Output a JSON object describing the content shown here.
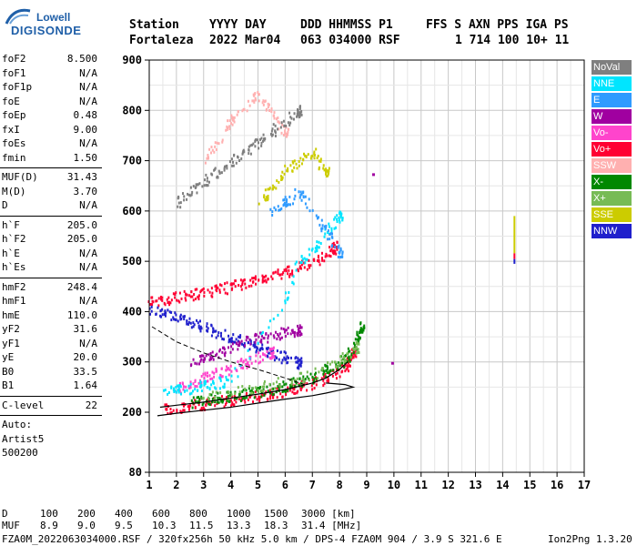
{
  "logo": {
    "top": "Lowell",
    "bottom": "DIGISONDE"
  },
  "header": {
    "labels": [
      "Station",
      "YYYY DAY",
      "DDD HHMMSS P1",
      "FFS S AXN PPS IGA PS"
    ],
    "values": [
      "Fortaleza",
      "2022 Mar04",
      "063 034000 RSF",
      "1 714 100 10+ 11"
    ]
  },
  "params": {
    "group1": [
      {
        "name": "foF2",
        "value": "8.500"
      },
      {
        "name": "foF1",
        "value": "N/A"
      },
      {
        "name": "foF1p",
        "value": "N/A"
      },
      {
        "name": "foE",
        "value": "N/A"
      },
      {
        "name": "foEp",
        "value": "0.48"
      },
      {
        "name": "fxI",
        "value": "9.00"
      },
      {
        "name": "foEs",
        "value": "N/A"
      },
      {
        "name": "fmin",
        "value": "1.50"
      }
    ],
    "group2": [
      {
        "name": "MUF(D)",
        "value": "31.43"
      },
      {
        "name": "M(D)",
        "value": "3.70"
      },
      {
        "name": "D",
        "value": "N/A"
      }
    ],
    "group3": [
      {
        "name": "h`F",
        "value": "205.0"
      },
      {
        "name": "h`F2",
        "value": "205.0"
      },
      {
        "name": "h`E",
        "value": "N/A"
      },
      {
        "name": "h`Es",
        "value": "N/A"
      }
    ],
    "group4": [
      {
        "name": "hmF2",
        "value": "248.4"
      },
      {
        "name": "hmF1",
        "value": "N/A"
      },
      {
        "name": "hmE",
        "value": "110.0"
      },
      {
        "name": "yF2",
        "value": "31.6"
      },
      {
        "name": "yF1",
        "value": "N/A"
      },
      {
        "name": "yE",
        "value": "20.0"
      },
      {
        "name": "B0",
        "value": "33.5"
      },
      {
        "name": "B1",
        "value": "1.64"
      }
    ],
    "clevel": {
      "name": "C-level",
      "value": "22"
    },
    "auto": [
      "Auto:",
      "Artist5",
      "500200"
    ]
  },
  "legend": [
    {
      "label": "NoVal",
      "color": "#7f7f7f"
    },
    {
      "label": "NNE",
      "color": "#00e5ff"
    },
    {
      "label": "E",
      "color": "#2f9bff"
    },
    {
      "label": "W",
      "color": "#a000a0"
    },
    {
      "label": "Vo-",
      "color": "#ff44cc"
    },
    {
      "label": "Vo+",
      "color": "#ff0033"
    },
    {
      "label": "SSW",
      "color": "#ffb0b0"
    },
    {
      "label": "X-",
      "color": "#008800"
    },
    {
      "label": "X+",
      "color": "#77bb55"
    },
    {
      "label": "SSE",
      "color": "#cccc00"
    },
    {
      "label": "NNW",
      "color": "#2020cc"
    }
  ],
  "footer": {
    "d_label": "D",
    "d_values": [
      "100",
      "200",
      "400",
      "600",
      "800",
      "1000",
      "1500",
      "3000 [km]"
    ],
    "muf_label": "MUF",
    "muf_values": [
      "8.9",
      "9.0",
      "9.5",
      "10.3",
      "11.5",
      "13.3",
      "18.3",
      "31.4 [MHz]"
    ],
    "file_line": "FZA0M_2022063034000.RSF / 320fx256h 50 kHz 5.0 km / DPS-4 FZA0M 904 / 3.9 S 321.6 E",
    "version": "Ion2Png 1.3.20"
  },
  "chart_data": {
    "type": "scatter",
    "xlim": [
      1,
      17
    ],
    "ylim": [
      80,
      900
    ],
    "xticks": [
      1,
      2,
      3,
      4,
      5,
      6,
      7,
      8,
      9,
      10,
      11,
      12,
      13,
      14,
      15,
      16,
      17
    ],
    "yticks": [
      80,
      200,
      300,
      400,
      500,
      600,
      700,
      800,
      900
    ],
    "grid": true,
    "traces": [
      {
        "name": "Vo+",
        "color": "#ff0033",
        "points": [
          [
            1.5,
            207
          ],
          [
            2.0,
            210
          ],
          [
            2.5,
            214
          ],
          [
            3.0,
            218
          ],
          [
            3.5,
            222
          ],
          [
            4.0,
            226
          ],
          [
            4.5,
            230
          ],
          [
            5.0,
            234
          ],
          [
            5.5,
            240
          ],
          [
            6.0,
            246
          ],
          [
            6.5,
            252
          ],
          [
            7.0,
            260
          ],
          [
            7.5,
            270
          ],
          [
            8.0,
            285
          ],
          [
            8.3,
            300
          ],
          [
            8.5,
            320
          ]
        ]
      },
      {
        "name": "X-",
        "color": "#008800",
        "points": [
          [
            2.5,
            222
          ],
          [
            3.0,
            226
          ],
          [
            3.5,
            230
          ],
          [
            4.0,
            234
          ],
          [
            4.5,
            238
          ],
          [
            5.0,
            243
          ],
          [
            5.5,
            248
          ],
          [
            6.0,
            254
          ],
          [
            6.5,
            262
          ],
          [
            7.0,
            272
          ],
          [
            7.5,
            285
          ],
          [
            8.0,
            300
          ],
          [
            8.3,
            315
          ],
          [
            8.6,
            340
          ],
          [
            8.8,
            370
          ]
        ]
      },
      {
        "name": "Vo+ upper",
        "color": "#ff0033",
        "points": [
          [
            1.0,
            420
          ],
          [
            1.5,
            425
          ],
          [
            2.0,
            430
          ],
          [
            2.5,
            435
          ],
          [
            3.0,
            440
          ],
          [
            3.5,
            446
          ],
          [
            4.0,
            452
          ],
          [
            4.5,
            458
          ],
          [
            5.0,
            465
          ],
          [
            5.5,
            472
          ],
          [
            6.0,
            480
          ],
          [
            6.5,
            490
          ],
          [
            7.0,
            500
          ],
          [
            7.5,
            515
          ],
          [
            7.8,
            530
          ]
        ]
      },
      {
        "name": "NNW",
        "color": "#2020cc",
        "points": [
          [
            1.0,
            410
          ],
          [
            1.5,
            400
          ],
          [
            2.0,
            390
          ],
          [
            2.5,
            380
          ],
          [
            3.0,
            370
          ],
          [
            3.5,
            360
          ],
          [
            4.0,
            350
          ],
          [
            4.5,
            340
          ],
          [
            5.0,
            330
          ],
          [
            5.5,
            320
          ],
          [
            6.0,
            310
          ],
          [
            6.5,
            300
          ]
        ]
      },
      {
        "name": "W",
        "color": "#a000a0",
        "points": [
          [
            2.5,
            300
          ],
          [
            3.0,
            310
          ],
          [
            3.5,
            320
          ],
          [
            4.0,
            330
          ],
          [
            4.5,
            340
          ],
          [
            5.0,
            350
          ],
          [
            5.5,
            355
          ],
          [
            6.0,
            360
          ],
          [
            6.5,
            365
          ]
        ]
      },
      {
        "name": "Vo-",
        "color": "#ff44cc",
        "points": [
          [
            2.0,
            250
          ],
          [
            2.5,
            260
          ],
          [
            3.0,
            270
          ],
          [
            3.5,
            280
          ],
          [
            4.0,
            290
          ],
          [
            4.5,
            300
          ],
          [
            5.0,
            310
          ],
          [
            5.5,
            320
          ]
        ]
      },
      {
        "name": "NNE",
        "color": "#00e5ff",
        "points": [
          [
            1.5,
            240
          ],
          [
            2.0,
            245
          ],
          [
            2.5,
            250
          ],
          [
            3.0,
            255
          ],
          [
            3.5,
            260
          ],
          [
            4.0,
            265
          ],
          [
            6.0,
            420
          ],
          [
            6.5,
            500
          ],
          [
            7.0,
            520
          ],
          [
            7.5,
            560
          ],
          [
            8.0,
            590
          ]
        ]
      },
      {
        "name": "E",
        "color": "#2f9bff",
        "points": [
          [
            5.5,
            600
          ],
          [
            6.0,
            620
          ],
          [
            6.5,
            640
          ],
          [
            7.0,
            600
          ],
          [
            7.5,
            560
          ],
          [
            8.0,
            520
          ]
        ]
      },
      {
        "name": "SSE",
        "color": "#cccc00",
        "points": [
          [
            5.0,
            620
          ],
          [
            5.5,
            650
          ],
          [
            6.0,
            680
          ],
          [
            6.5,
            700
          ],
          [
            7.0,
            720
          ],
          [
            7.5,
            680
          ]
        ]
      },
      {
        "name": "X+",
        "color": "#77bb55",
        "points": [
          [
            3.0,
            230
          ],
          [
            4.0,
            240
          ],
          [
            5.0,
            250
          ],
          [
            6.0,
            262
          ],
          [
            7.0,
            278
          ],
          [
            8.0,
            305
          ],
          [
            8.6,
            330
          ]
        ]
      },
      {
        "name": "SSW",
        "color": "#ffb0b0",
        "points": [
          [
            3.0,
            700
          ],
          [
            3.5,
            740
          ],
          [
            4.0,
            780
          ],
          [
            4.5,
            810
          ],
          [
            5.0,
            830
          ],
          [
            5.5,
            800
          ],
          [
            6.0,
            760
          ]
        ]
      },
      {
        "name": "NoVal",
        "color": "#7f7f7f",
        "points": [
          [
            2.0,
            620
          ],
          [
            2.5,
            640
          ],
          [
            3.0,
            660
          ],
          [
            3.5,
            680
          ],
          [
            4.0,
            700
          ],
          [
            4.5,
            720
          ],
          [
            5.0,
            740
          ],
          [
            5.5,
            760
          ],
          [
            6.0,
            780
          ],
          [
            6.5,
            800
          ]
        ]
      }
    ],
    "profile_lower": [
      [
        1.3,
        193
      ],
      [
        2.0,
        198
      ],
      [
        3.0,
        204
      ],
      [
        4.0,
        210
      ],
      [
        5.0,
        218
      ],
      [
        6.0,
        226
      ],
      [
        7.0,
        233
      ],
      [
        7.5,
        238
      ],
      [
        8.0,
        244
      ],
      [
        8.5,
        250
      ],
      [
        8.2,
        255
      ],
      [
        7.5,
        258
      ]
    ],
    "profile_upper": [
      [
        1.4,
        210
      ],
      [
        2.0,
        214
      ],
      [
        3.0,
        220
      ],
      [
        4.0,
        228
      ],
      [
        5.0,
        236
      ],
      [
        6.0,
        245
      ],
      [
        7.0,
        258
      ],
      [
        7.5,
        268
      ],
      [
        8.0,
        285
      ],
      [
        8.3,
        300
      ]
    ],
    "dashed_curve": [
      [
        1.1,
        370
      ],
      [
        2.0,
        340
      ],
      [
        3.0,
        318
      ],
      [
        4.0,
        300
      ],
      [
        5.0,
        285
      ],
      [
        6.0,
        268
      ],
      [
        6.7,
        255
      ]
    ],
    "isolated_trace": {
      "x": 14.4,
      "y_range": [
        495,
        590
      ],
      "colors": [
        "#cccc00",
        "#ff0033",
        "#2020cc"
      ]
    },
    "isolated_points": [
      {
        "x": 9.2,
        "y": 675,
        "color": "#a000a0"
      },
      {
        "x": 9.9,
        "y": 300,
        "color": "#a000a0"
      }
    ]
  }
}
